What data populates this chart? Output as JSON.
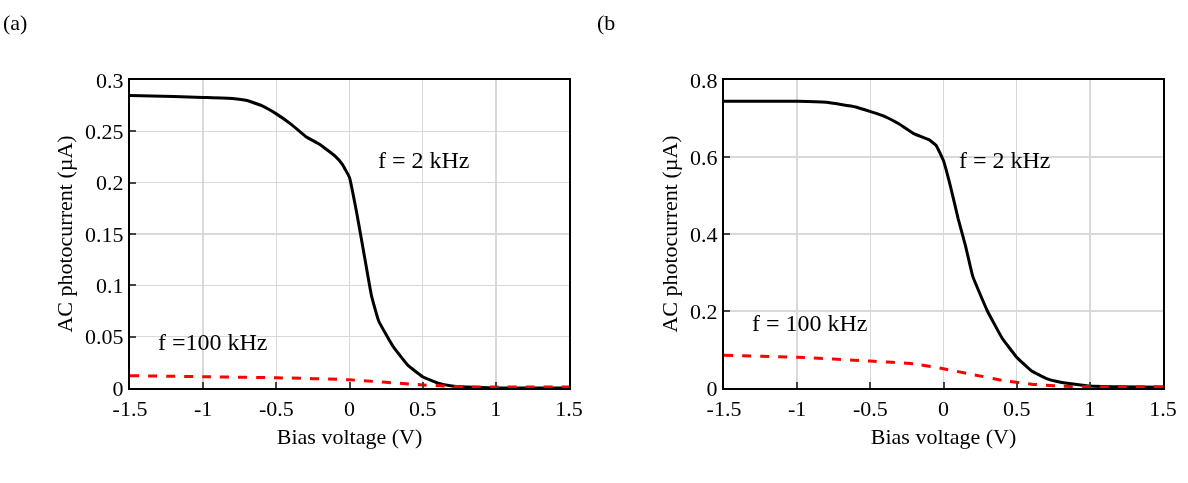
{
  "chart_data": [
    {
      "type": "line",
      "title": "(a)",
      "xlabel": "Bias voltage (V)",
      "ylabel": "AC photocurrent (µA)",
      "xlim": [
        -1.5,
        1.5
      ],
      "xticks": [
        -1.5,
        -1,
        -0.5,
        0,
        0.5,
        1,
        1.5
      ],
      "ylim": [
        0,
        0.3
      ],
      "yticks": [
        0,
        0.05,
        0.1,
        0.15,
        0.2,
        0.25,
        0.3
      ],
      "grid": true,
      "series": [
        {
          "color": "#000000",
          "line_style": "solid",
          "x": [
            -1.5,
            -1.2,
            -1,
            -0.8,
            -0.7,
            -0.6,
            -0.5,
            -0.4,
            -0.3,
            -0.2,
            -0.1,
            -0.05,
            0,
            0.05,
            0.1,
            0.15,
            0.2,
            0.3,
            0.4,
            0.5,
            0.6,
            0.7,
            0.8,
            1,
            1.5
          ],
          "values": [
            0.285,
            0.284,
            0.283,
            0.282,
            0.28,
            0.275,
            0.267,
            0.257,
            0.245,
            0.237,
            0.226,
            0.218,
            0.205,
            0.17,
            0.13,
            0.09,
            0.065,
            0.04,
            0.022,
            0.011,
            0.005,
            0.002,
            0.001,
            0,
            0
          ]
        },
        {
          "color": "#ff0000",
          "line_style": "dashed",
          "x": [
            -1.5,
            -1,
            -0.5,
            0,
            0.5,
            0.8,
            1,
            1.5
          ],
          "values": [
            0.012,
            0.011,
            0.01,
            0.008,
            0.003,
            0.001,
            0.001,
            0.001
          ]
        }
      ],
      "annotations": [
        "f = 2 kHz",
        "f =100 kHz"
      ]
    },
    {
      "type": "line",
      "title": "(b",
      "xlabel": "Bias voltage (V)",
      "ylabel": "AC photocurrent (µA)",
      "xlim": [
        -1.5,
        1.5
      ],
      "xticks": [
        -1.5,
        -1,
        -0.5,
        0,
        0.5,
        1,
        1.5
      ],
      "ylim": [
        0,
        0.8
      ],
      "yticks": [
        0,
        0.2,
        0.4,
        0.6,
        0.8
      ],
      "grid": true,
      "series": [
        {
          "color": "#000000",
          "line_style": "solid",
          "x": [
            -1.5,
            -1,
            -0.8,
            -0.6,
            -0.4,
            -0.3,
            -0.2,
            -0.1,
            -0.05,
            0,
            0.05,
            0.1,
            0.15,
            0.2,
            0.3,
            0.4,
            0.5,
            0.6,
            0.7,
            0.8,
            1,
            1.2,
            1.5
          ],
          "values": [
            0.745,
            0.745,
            0.742,
            0.73,
            0.705,
            0.685,
            0.66,
            0.645,
            0.63,
            0.59,
            0.52,
            0.44,
            0.37,
            0.29,
            0.2,
            0.13,
            0.08,
            0.045,
            0.025,
            0.015,
            0.005,
            0.003,
            0.002
          ]
        },
        {
          "color": "#ff0000",
          "line_style": "dashed",
          "x": [
            -1.5,
            -1,
            -0.5,
            -0.2,
            0,
            0.2,
            0.4,
            0.6,
            0.8,
            1,
            1.5
          ],
          "values": [
            0.085,
            0.08,
            0.07,
            0.063,
            0.05,
            0.035,
            0.02,
            0.01,
            0.005,
            0.003,
            0.003
          ]
        }
      ],
      "annotations": [
        "f = 2 kHz",
        "f = 100 kHz"
      ]
    }
  ]
}
